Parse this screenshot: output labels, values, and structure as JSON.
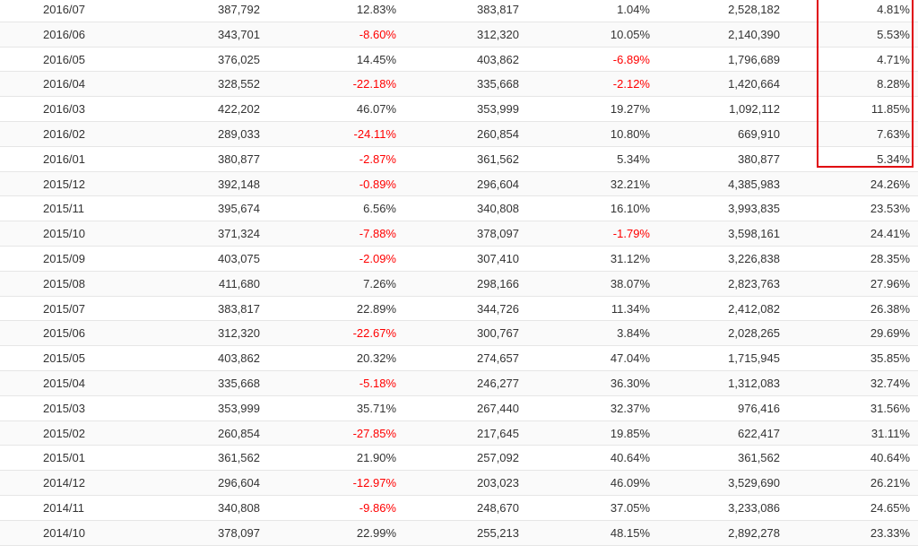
{
  "table": {
    "rows": [
      [
        "2016/07",
        "387,792",
        "12.83%",
        "383,817",
        "1.04%",
        "2,528,182",
        "4.81%"
      ],
      [
        "2016/06",
        "343,701",
        "-8.60%",
        "312,320",
        "10.05%",
        "2,140,390",
        "5.53%"
      ],
      [
        "2016/05",
        "376,025",
        "14.45%",
        "403,862",
        "-6.89%",
        "1,796,689",
        "4.71%"
      ],
      [
        "2016/04",
        "328,552",
        "-22.18%",
        "335,668",
        "-2.12%",
        "1,420,664",
        "8.28%"
      ],
      [
        "2016/03",
        "422,202",
        "46.07%",
        "353,999",
        "19.27%",
        "1,092,112",
        "11.85%"
      ],
      [
        "2016/02",
        "289,033",
        "-24.11%",
        "260,854",
        "10.80%",
        "669,910",
        "7.63%"
      ],
      [
        "2016/01",
        "380,877",
        "-2.87%",
        "361,562",
        "5.34%",
        "380,877",
        "5.34%"
      ],
      [
        "2015/12",
        "392,148",
        "-0.89%",
        "296,604",
        "32.21%",
        "4,385,983",
        "24.26%"
      ],
      [
        "2015/11",
        "395,674",
        "6.56%",
        "340,808",
        "16.10%",
        "3,993,835",
        "23.53%"
      ],
      [
        "2015/10",
        "371,324",
        "-7.88%",
        "378,097",
        "-1.79%",
        "3,598,161",
        "24.41%"
      ],
      [
        "2015/09",
        "403,075",
        "-2.09%",
        "307,410",
        "31.12%",
        "3,226,838",
        "28.35%"
      ],
      [
        "2015/08",
        "411,680",
        "7.26%",
        "298,166",
        "38.07%",
        "2,823,763",
        "27.96%"
      ],
      [
        "2015/07",
        "383,817",
        "22.89%",
        "344,726",
        "11.34%",
        "2,412,082",
        "26.38%"
      ],
      [
        "2015/06",
        "312,320",
        "-22.67%",
        "300,767",
        "3.84%",
        "2,028,265",
        "29.69%"
      ],
      [
        "2015/05",
        "403,862",
        "20.32%",
        "274,657",
        "47.04%",
        "1,715,945",
        "35.85%"
      ],
      [
        "2015/04",
        "335,668",
        "-5.18%",
        "246,277",
        "36.30%",
        "1,312,083",
        "32.74%"
      ],
      [
        "2015/03",
        "353,999",
        "35.71%",
        "267,440",
        "32.37%",
        "976,416",
        "31.56%"
      ],
      [
        "2015/02",
        "260,854",
        "-27.85%",
        "217,645",
        "19.85%",
        "622,417",
        "31.11%"
      ],
      [
        "2015/01",
        "361,562",
        "21.90%",
        "257,092",
        "40.64%",
        "361,562",
        "40.64%"
      ],
      [
        "2014/12",
        "296,604",
        "-12.97%",
        "203,023",
        "46.09%",
        "3,529,690",
        "26.21%"
      ],
      [
        "2014/11",
        "340,808",
        "-9.86%",
        "248,670",
        "37.05%",
        "3,233,086",
        "24.65%"
      ],
      [
        "2014/10",
        "378,097",
        "22.99%",
        "255,213",
        "48.15%",
        "2,892,278",
        "23.33%"
      ]
    ]
  },
  "colors": {
    "negative": "#ff0000",
    "highlight_border": "#e0000b"
  }
}
